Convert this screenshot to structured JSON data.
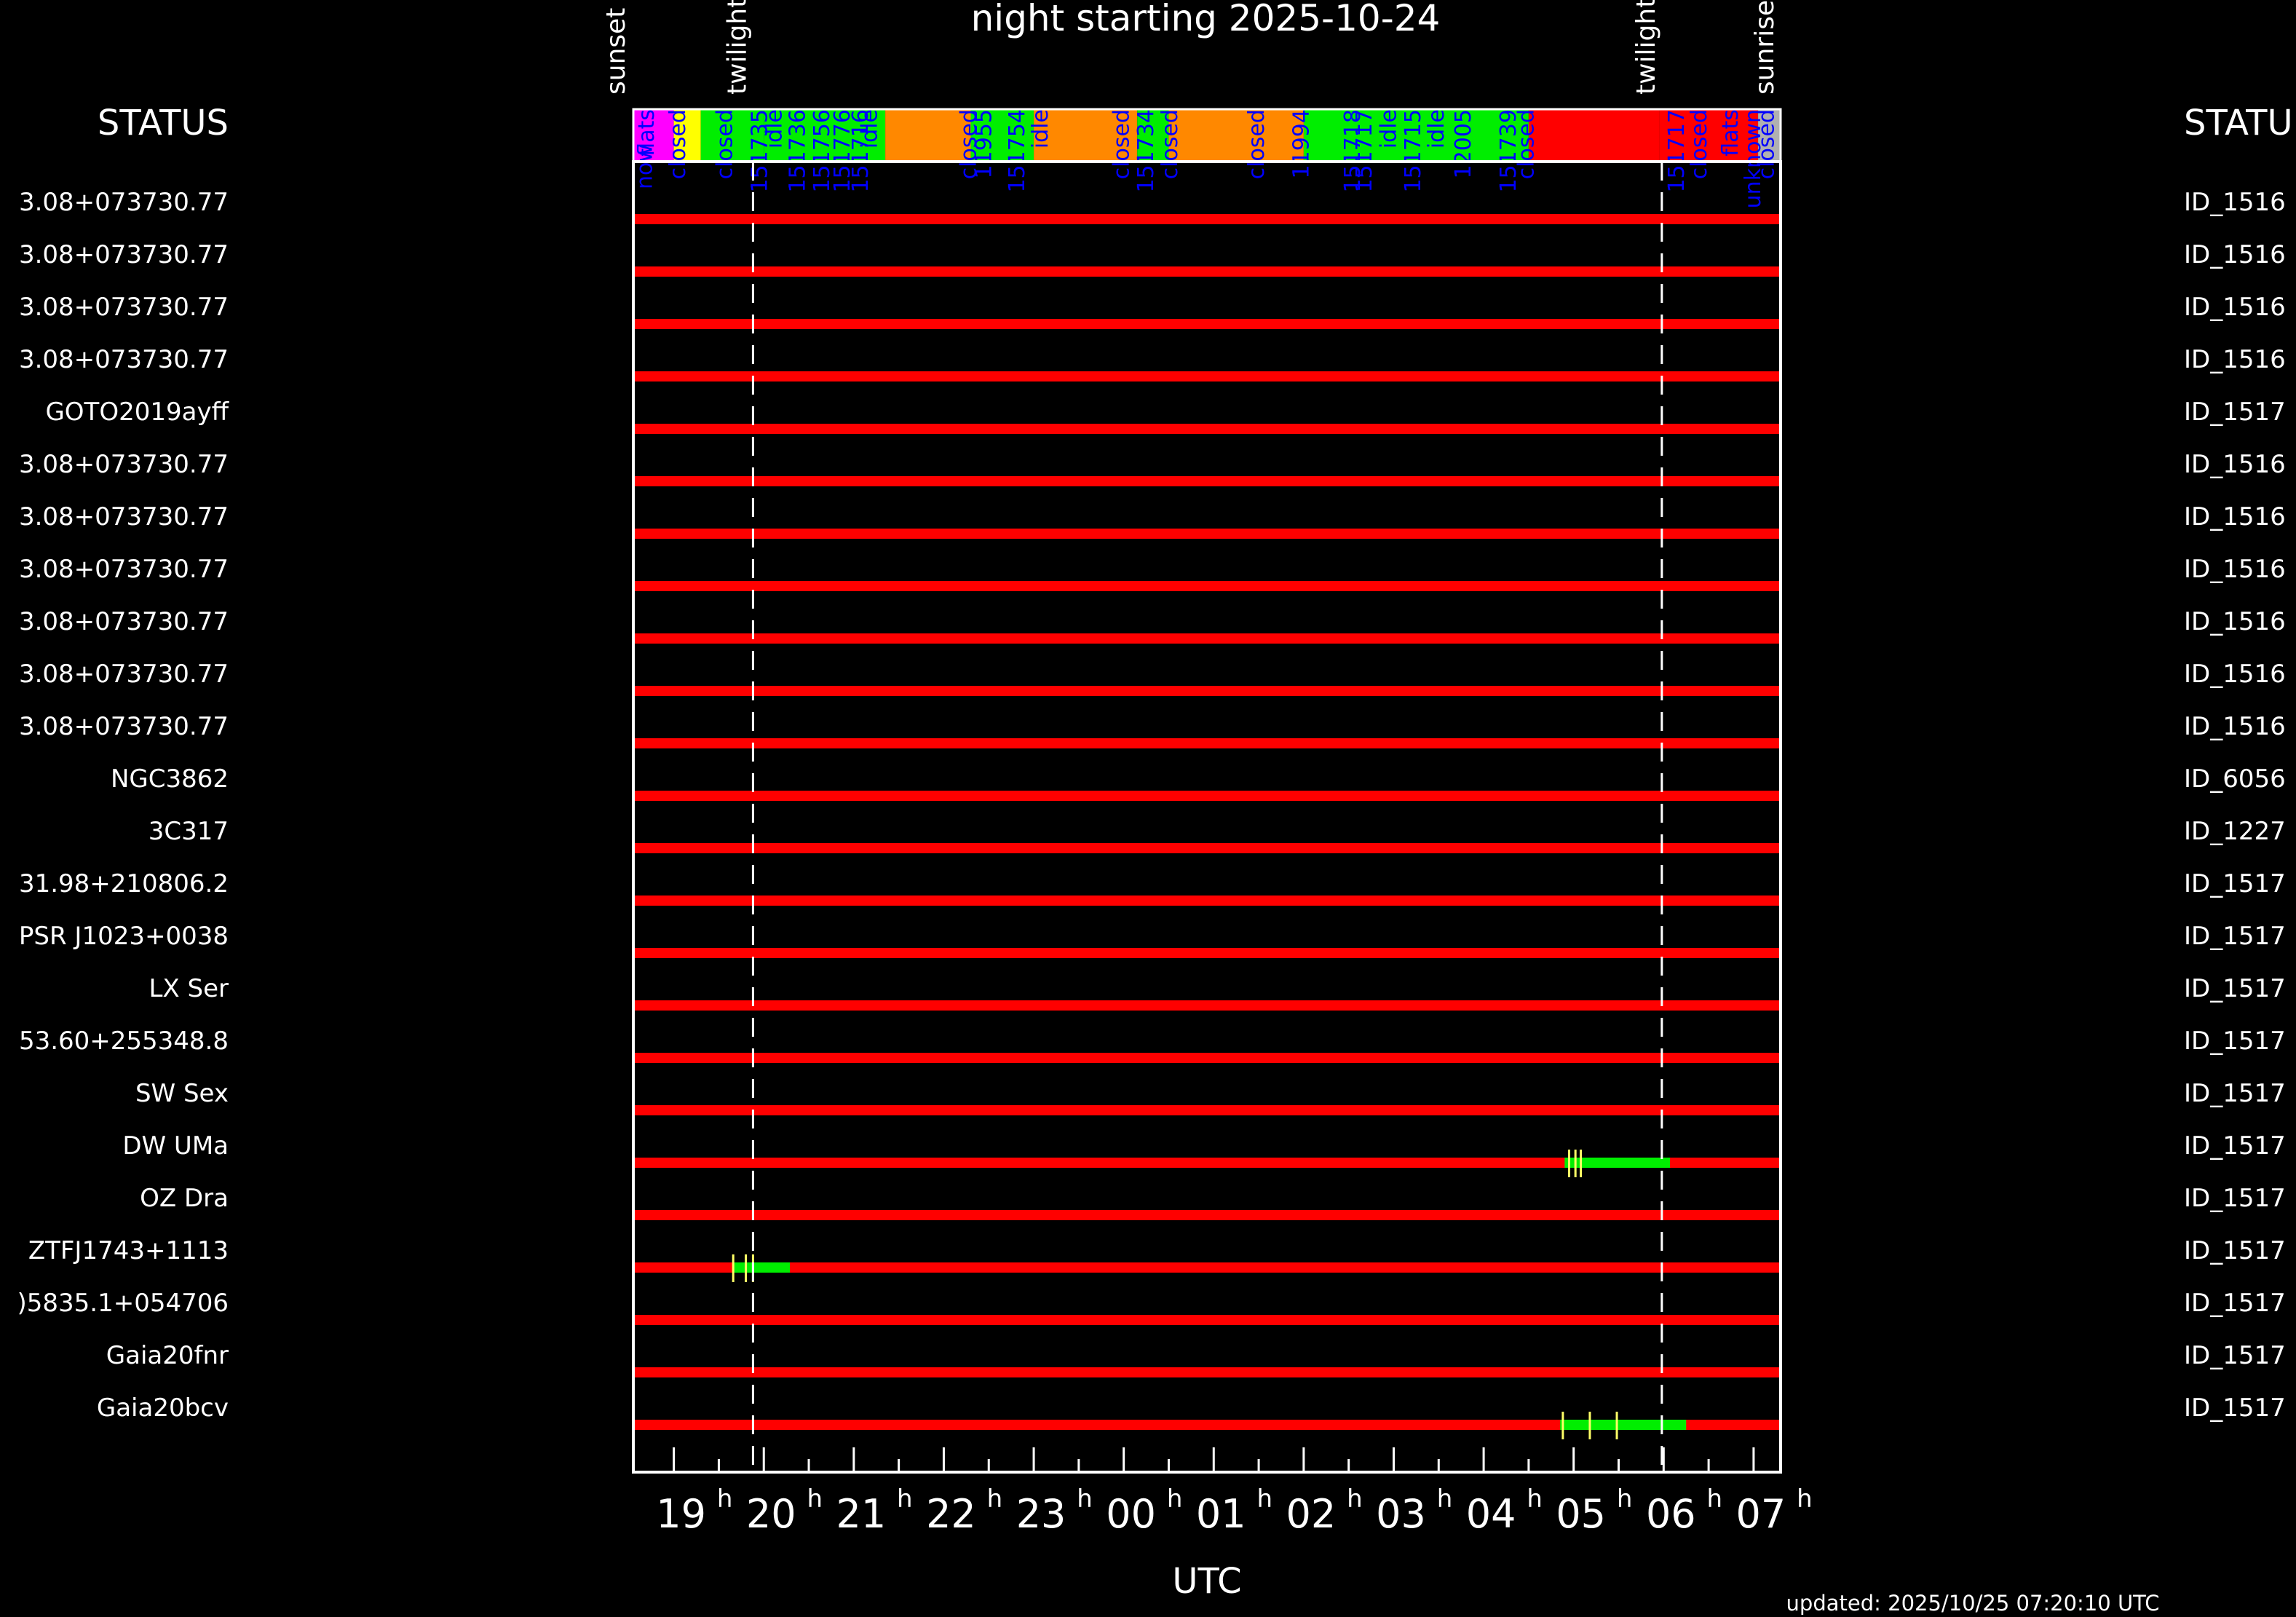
{
  "colors": {
    "background": "#000000",
    "frame": "#ffffff",
    "observable": "#ff0000",
    "scheduled": "#00ee00",
    "tick": "#ffff66",
    "status_label": "#0000ff",
    "flats": "#ff00ff",
    "twilight_band": "#ffff00",
    "idle": "#ff8800",
    "closed": "#ff0000",
    "unknown": "#b0b0b0"
  },
  "chart_data": {
    "type": "gantt",
    "title": "night starting 2025-10-24",
    "xlabel": "UTC",
    "updated": "updated: 2025/10/25 07:20:10 UTC",
    "status_heading_left": "STATUS",
    "status_heading_right": "STATU",
    "x_range_hours": [
      18.55,
      31.3
    ],
    "x_ticks": [
      {
        "hour": 19,
        "label": "19",
        "sup": "h"
      },
      {
        "hour": 20,
        "label": "20",
        "sup": "h"
      },
      {
        "hour": 21,
        "label": "21",
        "sup": "h"
      },
      {
        "hour": 22,
        "label": "22",
        "sup": "h"
      },
      {
        "hour": 23,
        "label": "23",
        "sup": "h"
      },
      {
        "hour": 24,
        "label": "00",
        "sup": "h"
      },
      {
        "hour": 25,
        "label": "01",
        "sup": "h"
      },
      {
        "hour": 26,
        "label": "02",
        "sup": "h"
      },
      {
        "hour": 27,
        "label": "03",
        "sup": "h"
      },
      {
        "hour": 28,
        "label": "04",
        "sup": "h"
      },
      {
        "hour": 29,
        "label": "05",
        "sup": "h"
      },
      {
        "hour": 30,
        "label": "06",
        "sup": "h"
      },
      {
        "hour": 31,
        "label": "07",
        "sup": "h"
      }
    ],
    "events": [
      {
        "label": "sunset",
        "hour": 18.55
      },
      {
        "label": "twilight",
        "hour": 19.88
      },
      {
        "label": "twilight",
        "hour": 29.98
      },
      {
        "label": "sunrise",
        "hour": 31.3
      }
    ],
    "twilight_hours": [
      19.88,
      29.98
    ],
    "status_blocks": [
      {
        "state": "flats",
        "start": 18.55,
        "end": 19.0
      },
      {
        "state": "twilight_band",
        "start": 19.0,
        "end": 19.3
      },
      {
        "state": "scheduled",
        "start": 19.3,
        "end": 20.0
      },
      {
        "state": "scheduled",
        "start": 20.0,
        "end": 21.35
      },
      {
        "state": "idle",
        "start": 21.35,
        "end": 22.3
      },
      {
        "state": "scheduled",
        "start": 22.3,
        "end": 23.0
      },
      {
        "state": "idle",
        "start": 23.0,
        "end": 24.15
      },
      {
        "state": "scheduled",
        "start": 24.15,
        "end": 24.5
      },
      {
        "state": "idle",
        "start": 24.5,
        "end": 26.0
      },
      {
        "state": "scheduled",
        "start": 26.0,
        "end": 28.5
      },
      {
        "state": "closed",
        "start": 28.5,
        "end": 29.95
      },
      {
        "state": "closed",
        "start": 29.95,
        "end": 31.05
      },
      {
        "state": "unknown",
        "start": 31.05,
        "end": 31.3
      }
    ],
    "status_labels": [
      {
        "text": "flats",
        "hour": 18.6,
        "color": "blue"
      },
      {
        "text": "now",
        "hour": 18.58,
        "color": "blue",
        "offset": "below"
      },
      {
        "text": "closed",
        "hour": 18.95,
        "color": "blue"
      },
      {
        "text": "closed",
        "hour": 19.47,
        "color": "blue"
      },
      {
        "text": "151735",
        "hour": 19.86,
        "color": "blue"
      },
      {
        "text": "idle",
        "hour": 20.02,
        "color": "blue"
      },
      {
        "text": "151736",
        "hour": 20.28,
        "color": "blue"
      },
      {
        "text": "151756",
        "hour": 20.55,
        "color": "blue"
      },
      {
        "text": "151776",
        "hour": 20.78,
        "color": "blue"
      },
      {
        "text": "151716",
        "hour": 20.98,
        "color": "blue"
      },
      {
        "text": "idle",
        "hour": 21.08,
        "color": "blue"
      },
      {
        "text": "closed",
        "hour": 22.18,
        "color": "blue"
      },
      {
        "text": "11955",
        "hour": 22.35,
        "color": "blue"
      },
      {
        "text": "151754",
        "hour": 22.72,
        "color": "blue"
      },
      {
        "text": "idle",
        "hour": 22.98,
        "color": "blue"
      },
      {
        "text": "closed",
        "hour": 23.88,
        "color": "blue"
      },
      {
        "text": "151734",
        "hour": 24.15,
        "color": "blue"
      },
      {
        "text": "closed",
        "hour": 24.42,
        "color": "blue"
      },
      {
        "text": "closed",
        "hour": 25.38,
        "color": "blue"
      },
      {
        "text": "11994",
        "hour": 25.88,
        "color": "blue"
      },
      {
        "text": "151718",
        "hour": 26.45,
        "color": "blue"
      },
      {
        "text": "151717",
        "hour": 26.58,
        "color": "blue"
      },
      {
        "text": "idle",
        "hour": 26.85,
        "color": "blue"
      },
      {
        "text": "151715",
        "hour": 27.12,
        "color": "blue"
      },
      {
        "text": "idle",
        "hour": 27.38,
        "color": "blue"
      },
      {
        "text": "12005",
        "hour": 27.68,
        "color": "blue"
      },
      {
        "text": "151739",
        "hour": 28.18,
        "color": "blue"
      },
      {
        "text": "closed",
        "hour": 28.38,
        "color": "blue"
      },
      {
        "text": "151717",
        "hour": 30.05,
        "color": "blue"
      },
      {
        "text": "closed",
        "hour": 30.3,
        "color": "blue"
      },
      {
        "text": "flats",
        "hour": 30.65,
        "color": "blue"
      },
      {
        "text": "unknown",
        "hour": 30.9,
        "color": "blue"
      },
      {
        "text": "closed",
        "hour": 31.05,
        "color": "blue"
      }
    ],
    "rows": [
      {
        "name": "3.08+073730.77",
        "id": "ID_1516",
        "windows": []
      },
      {
        "name": "3.08+073730.77",
        "id": "ID_1516",
        "windows": []
      },
      {
        "name": "3.08+073730.77",
        "id": "ID_1516",
        "windows": []
      },
      {
        "name": "3.08+073730.77",
        "id": "ID_1516",
        "windows": []
      },
      {
        "name": "GOTO2019ayff",
        "id": "ID_1517",
        "windows": []
      },
      {
        "name": "3.08+073730.77",
        "id": "ID_1516",
        "windows": []
      },
      {
        "name": "3.08+073730.77",
        "id": "ID_1516",
        "windows": []
      },
      {
        "name": "3.08+073730.77",
        "id": "ID_1516",
        "windows": []
      },
      {
        "name": "3.08+073730.77",
        "id": "ID_1516",
        "windows": []
      },
      {
        "name": "3.08+073730.77",
        "id": "ID_1516",
        "windows": []
      },
      {
        "name": "3.08+073730.77",
        "id": "ID_1516",
        "windows": []
      },
      {
        "name": "NGC3862",
        "id": "ID_6056",
        "windows": []
      },
      {
        "name": "3C317",
        "id": "ID_1227",
        "windows": []
      },
      {
        "name": "31.98+210806.2",
        "id": "ID_1517",
        "windows": []
      },
      {
        "name": "PSR J1023+0038",
        "id": "ID_1517",
        "windows": []
      },
      {
        "name": "LX Ser",
        "id": "ID_1517",
        "windows": []
      },
      {
        "name": "53.60+255348.8",
        "id": "ID_1517",
        "windows": []
      },
      {
        "name": "SW Sex",
        "id": "ID_1517",
        "windows": []
      },
      {
        "name": "DW UMa",
        "id": "ID_1517",
        "windows": [
          {
            "start": 28.9,
            "end": 30.07,
            "ticks": [
              28.95,
              29.02,
              29.08
            ]
          }
        ]
      },
      {
        "name": "OZ Dra",
        "id": "ID_1517",
        "windows": []
      },
      {
        "name": "ZTFJ1743+1113",
        "id": "ID_1517",
        "windows": [
          {
            "start": 19.65,
            "end": 20.29,
            "ticks": [
              19.66,
              19.8,
              19.88
            ]
          }
        ]
      },
      {
        "name": ")5835.1+054706",
        "id": "ID_1517",
        "windows": []
      },
      {
        "name": "Gaia20fnr",
        "id": "ID_1517",
        "windows": []
      },
      {
        "name": "Gaia20bcv",
        "id": "ID_1517",
        "windows": [
          {
            "start": 28.85,
            "end": 30.25,
            "ticks": [
              28.88,
              29.18,
              29.48
            ]
          }
        ]
      }
    ]
  }
}
